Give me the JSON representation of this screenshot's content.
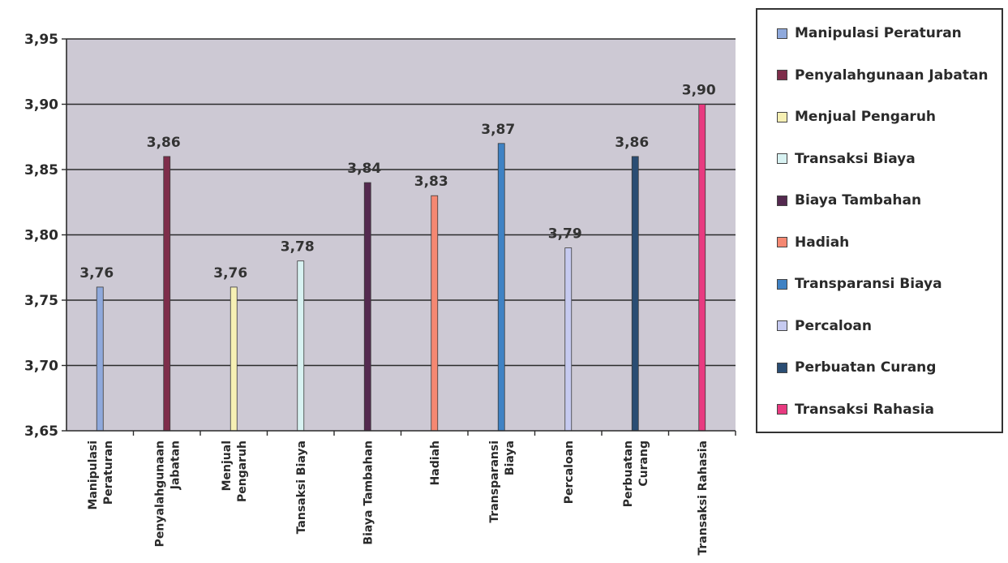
{
  "chart_data": {
    "type": "bar",
    "categories": [
      "Manipulasi Peraturan",
      "Penyalahgunaan Jabatan",
      "Menjual Pengaruh",
      "Tansaksi Biaya",
      "Biaya Tambahan",
      "Hadiah",
      "Transparansi Biaya",
      "Percaloan",
      "Perbuatan Curang",
      "Transaksi Rahasia"
    ],
    "category_label_lines": [
      [
        "Manipulasi",
        "Peraturan"
      ],
      [
        "Penyalahgunaan",
        "Jabatan"
      ],
      [
        "Menjual",
        "Pengaruh"
      ],
      [
        "Tansaksi Biaya"
      ],
      [
        "Biaya Tambahan"
      ],
      [
        "Hadiah"
      ],
      [
        "Transparansi",
        "Biaya"
      ],
      [
        "Percaloan"
      ],
      [
        "Perbuatan",
        "Curang"
      ],
      [
        "Transaksi Rahasia"
      ]
    ],
    "values": [
      3.76,
      3.86,
      3.76,
      3.78,
      3.84,
      3.83,
      3.87,
      3.79,
      3.86,
      3.9
    ],
    "value_labels": [
      "3,76",
      "3,86",
      "3,76",
      "3,78",
      "3,84",
      "3,83",
      "3,87",
      "3,79",
      "3,86",
      "3,90"
    ],
    "series_legend": [
      "Manipulasi Peraturan",
      "Penyalahgunaan Jabatan",
      "Menjual Pengaruh",
      "Transaksi Biaya",
      "Biaya Tambahan",
      "Hadiah",
      "Transparansi Biaya",
      "Percaloan",
      "Perbuatan Curang",
      "Transaksi Rahasia"
    ],
    "colors": [
      "#8fa9dc",
      "#7e2d4a",
      "#f6f0b4",
      "#d8f2f2",
      "#54294f",
      "#f58872",
      "#3f82c4",
      "#c6caf0",
      "#2a4d73",
      "#e83a80"
    ],
    "ylim": [
      3.65,
      3.95
    ],
    "yticks": [
      3.65,
      3.7,
      3.75,
      3.8,
      3.85,
      3.9,
      3.95
    ],
    "ytick_labels": [
      "3,65",
      "3,70",
      "3,75",
      "3,80",
      "3,85",
      "3,90",
      "3,95"
    ],
    "grid": true,
    "plot_background": "#cdc9d4",
    "legend_position": "right",
    "title": "",
    "xlabel": "",
    "ylabel": ""
  }
}
